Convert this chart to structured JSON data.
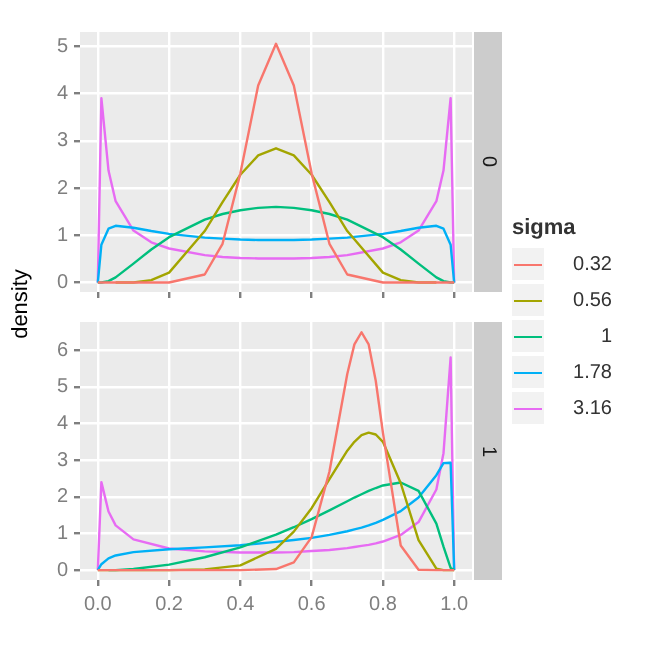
{
  "chart_data": [
    {
      "type": "line",
      "title": "0",
      "ylabel": "density",
      "legend": "right",
      "legend_title": "sigma",
      "grid": true,
      "tick_labels": "y",
      "xlim": [
        -0.05,
        1.05
      ],
      "xticks": [
        {
          "value": 0,
          "label": null
        },
        {
          "value": 0.2,
          "label": null
        },
        {
          "value": 0.4,
          "label": null
        },
        {
          "value": 0.6,
          "label": null
        },
        {
          "value": 0.8,
          "label": null
        },
        {
          "value": 1,
          "label": null
        }
      ],
      "ylim": [
        -0.2,
        5.3
      ],
      "yticks": [
        0,
        1,
        2,
        3,
        4,
        5
      ],
      "x": [
        0,
        0.01,
        0.03,
        0.05,
        0.1,
        0.15,
        0.2,
        0.3,
        0.35,
        0.4,
        0.45,
        0.5,
        0.55,
        0.6,
        0.65,
        0.7,
        0.8,
        0.85,
        0.9,
        0.95,
        0.97,
        0.99,
        1
      ],
      "series": [
        {
          "name": "0.32",
          "color": "#f8766d",
          "values": [
            0,
            0,
            0,
            0,
            0,
            0,
            0,
            0.17,
            0.82,
            2.31,
            4.17,
            5.05,
            4.17,
            2.31,
            0.82,
            0.17,
            0,
            0,
            0,
            0,
            0,
            0,
            0
          ]
        },
        {
          "name": "0.56",
          "color": "#a3a500",
          "x": [
            0.05,
            0.1,
            0.15,
            0.2,
            0.3,
            0.35,
            0.4,
            0.45,
            0.5,
            0.55,
            0.6,
            0.65,
            0.7,
            0.8,
            0.85,
            0.9,
            0.95
          ],
          "values": [
            0,
            0,
            0.05,
            0.21,
            1.09,
            1.7,
            2.28,
            2.69,
            2.84,
            2.69,
            2.28,
            1.7,
            1.09,
            0.21,
            0.05,
            0,
            0
          ]
        },
        {
          "name": "1",
          "color": "#00bf7d",
          "values": [
            0,
            0,
            0.03,
            0.11,
            0.4,
            0.7,
            0.96,
            1.33,
            1.45,
            1.53,
            1.58,
            1.6,
            1.58,
            1.53,
            1.45,
            1.33,
            0.96,
            0.7,
            0.4,
            0.11,
            0.03,
            0,
            0
          ]
        },
        {
          "name": "1.78",
          "color": "#00b0f6",
          "values": [
            0,
            0.8,
            1.14,
            1.2,
            1.16,
            1.09,
            1.03,
            0.95,
            0.93,
            0.91,
            0.9,
            0.9,
            0.9,
            0.91,
            0.93,
            0.95,
            1.03,
            1.09,
            1.16,
            1.2,
            1.14,
            0.8,
            0
          ]
        },
        {
          "name": "3.16",
          "color": "#e76bf3",
          "values": [
            0,
            3.9,
            2.37,
            1.72,
            1.1,
            0.85,
            0.72,
            0.58,
            0.54,
            0.52,
            0.51,
            0.51,
            0.51,
            0.52,
            0.54,
            0.58,
            0.72,
            0.85,
            1.1,
            1.72,
            2.37,
            3.9,
            0
          ]
        }
      ]
    },
    {
      "type": "line",
      "title": "1",
      "grid": true,
      "xlim": [
        -0.05,
        1.05
      ],
      "xticks": [
        {
          "value": 0,
          "label": "0.0"
        },
        {
          "value": 0.2,
          "label": "0.2"
        },
        {
          "value": 0.4,
          "label": "0.4"
        },
        {
          "value": 0.6,
          "label": "0.6"
        },
        {
          "value": 0.8,
          "label": "0.8"
        },
        {
          "value": 1,
          "label": "1.0"
        }
      ],
      "ylim": [
        -0.27,
        6.77
      ],
      "yticks": [
        0,
        1,
        2,
        3,
        4,
        5,
        6
      ],
      "x": [
        0,
        0.01,
        0.03,
        0.05,
        0.1,
        0.2,
        0.3,
        0.4,
        0.5,
        0.55,
        0.6,
        0.65,
        0.7,
        0.72,
        0.74,
        0.76,
        0.78,
        0.8,
        0.85,
        0.9,
        0.95,
        0.97,
        0.99,
        1
      ],
      "series": [
        {
          "color": "#f8766d",
          "values": [
            0,
            0,
            0,
            0,
            0,
            0,
            0,
            0,
            0.03,
            0.21,
            0.9,
            2.69,
            5.35,
            6.16,
            6.49,
            6.16,
            5.16,
            3.75,
            0.67,
            0.01,
            0,
            0,
            0,
            0
          ]
        },
        {
          "color": "#a3a500",
          "values": [
            0,
            0,
            0,
            0,
            0,
            0,
            0.02,
            0.13,
            0.58,
            1.05,
            1.69,
            2.48,
            3.26,
            3.5,
            3.68,
            3.75,
            3.7,
            3.5,
            2.37,
            0.82,
            0.04,
            0,
            0,
            0
          ]
        },
        {
          "color": "#00bf7d",
          "x": [
            0.03,
            0.05,
            0.1,
            0.2,
            0.3,
            0.4,
            0.5,
            0.55,
            0.6,
            0.65,
            0.7,
            0.72,
            0.74,
            0.76,
            0.78,
            0.8,
            0.85,
            0.9,
            0.95,
            0.97,
            0.99,
            1
          ],
          "values": [
            0,
            0,
            0.03,
            0.15,
            0.35,
            0.62,
            0.97,
            1.17,
            1.39,
            1.63,
            1.88,
            1.98,
            2.07,
            2.16,
            2.24,
            2.31,
            2.39,
            2.16,
            1.27,
            0.64,
            0.06,
            0
          ]
        },
        {
          "color": "#00b0f6",
          "values": [
            0,
            0.16,
            0.32,
            0.4,
            0.49,
            0.57,
            0.62,
            0.68,
            0.77,
            0.82,
            0.88,
            0.96,
            1.06,
            1.11,
            1.16,
            1.22,
            1.29,
            1.37,
            1.61,
            1.98,
            2.59,
            2.92,
            2.93,
            0
          ]
        },
        {
          "color": "#e76bf3",
          "values": [
            0,
            2.4,
            1.6,
            1.22,
            0.84,
            0.59,
            0.51,
            0.48,
            0.48,
            0.49,
            0.52,
            0.55,
            0.6,
            0.63,
            0.66,
            0.69,
            0.73,
            0.78,
            0.96,
            1.31,
            2.2,
            3.19,
            5.8,
            0
          ]
        }
      ]
    }
  ]
}
